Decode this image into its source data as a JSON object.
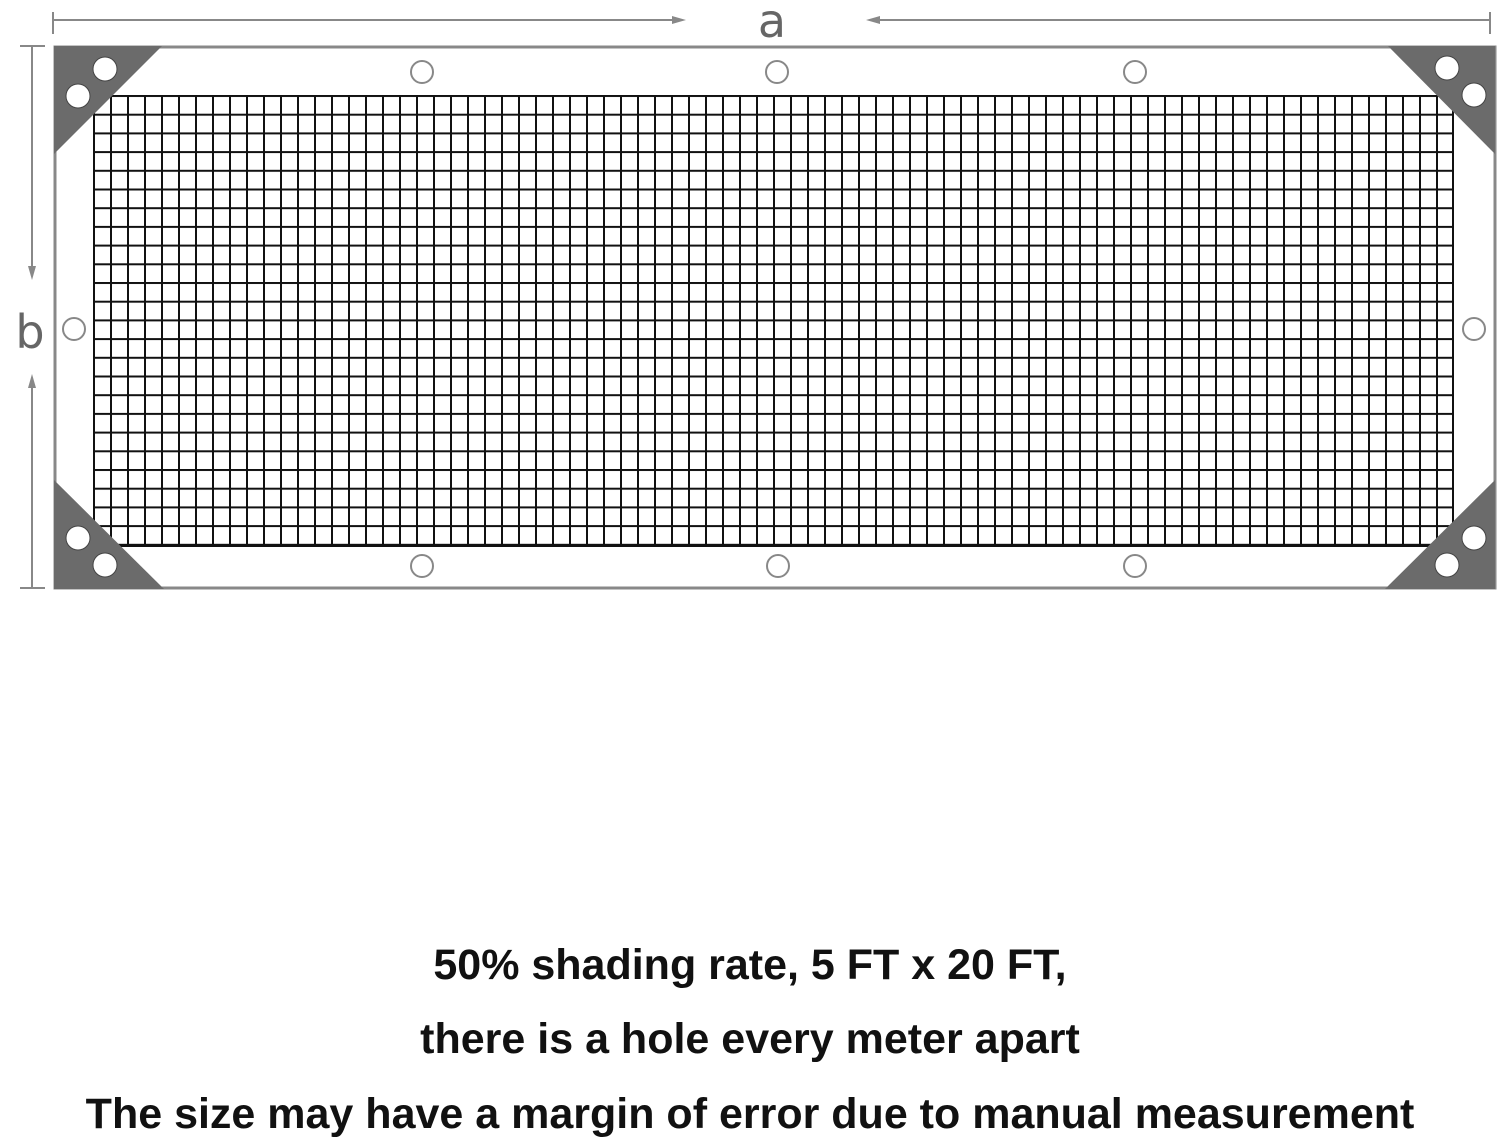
{
  "diagram": {
    "dimension_labels": {
      "width": "a",
      "height": "b"
    },
    "colors": {
      "frame": "#888888",
      "corner_patch": "#6b6b6b",
      "mesh": "#111111",
      "grommet": "#888888"
    }
  },
  "captions": [
    "50% shading  rate, 5 FT x 20 FT,",
    "there is a hole every meter apart",
    "The size  may  have a margin of error due to manual measurement"
  ]
}
